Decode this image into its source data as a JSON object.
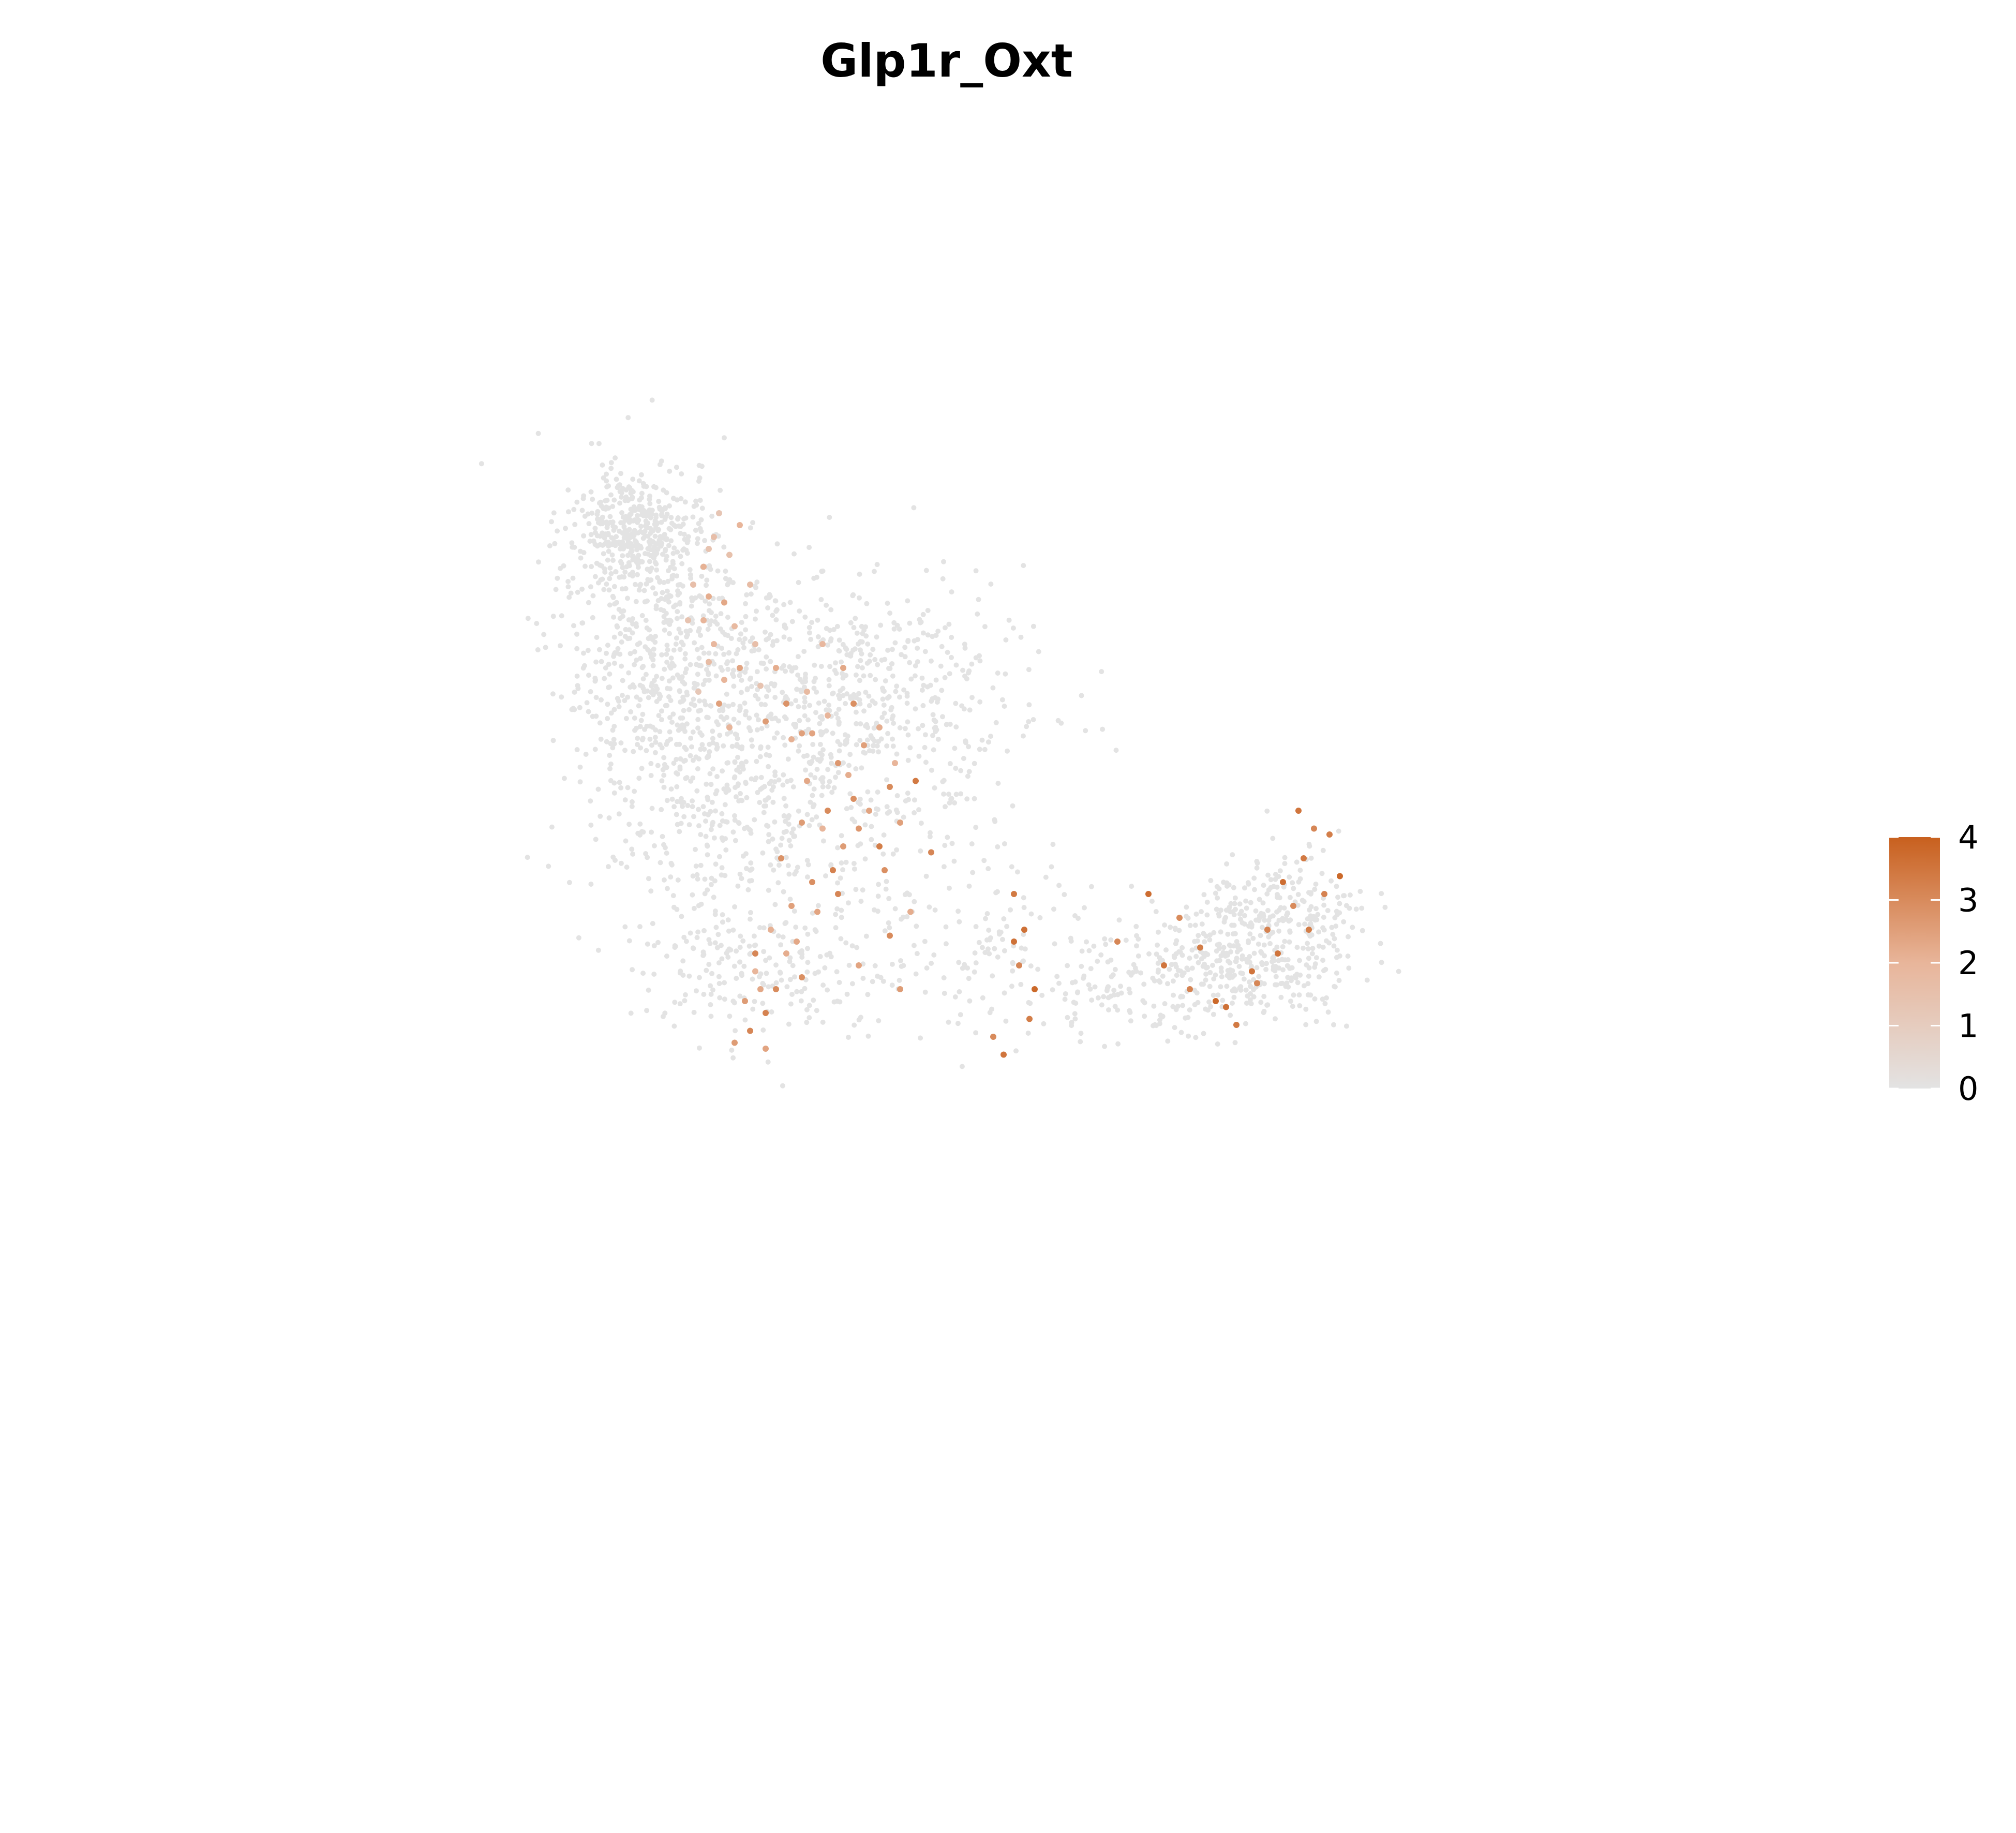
{
  "chart_data": {
    "type": "scatter",
    "title": "Glp1r_Oxt",
    "xlabel": "",
    "ylabel": "",
    "grid": false,
    "axes_visible": false,
    "legend": {
      "type": "colorbar",
      "placement": "right",
      "ticks": [
        "0",
        "1",
        "2",
        "3",
        "4"
      ],
      "min": 0,
      "max": 4
    },
    "colors": {
      "low": "#e3e3e3",
      "mid": "#e8b59a",
      "high": "#c8601e"
    },
    "expressed_points": [
      [
        0.24,
        0.8,
        1.6
      ],
      [
        0.26,
        0.83,
        2.1
      ],
      [
        0.27,
        0.86,
        1.4
      ],
      [
        0.26,
        0.74,
        2.0
      ],
      [
        0.25,
        0.62,
        1.2
      ],
      [
        0.28,
        0.7,
        1.9
      ],
      [
        0.3,
        0.77,
        2.3
      ],
      [
        0.31,
        0.85,
        1.5
      ],
      [
        0.33,
        0.9,
        2.0
      ],
      [
        0.29,
        0.92,
        1.3
      ],
      [
        0.27,
        0.78,
        2.2
      ],
      [
        0.32,
        0.73,
        1.8
      ],
      [
        0.33,
        0.66,
        2.4
      ],
      [
        0.35,
        0.8,
        1.7
      ],
      [
        0.36,
        0.7,
        1.6
      ],
      [
        0.29,
        0.6,
        2.5
      ],
      [
        0.31,
        0.56,
        2.0
      ],
      [
        0.37,
        0.63,
        1.4
      ],
      [
        0.38,
        0.57,
        2.6
      ],
      [
        0.4,
        0.66,
        2.2
      ],
      [
        0.42,
        0.6,
        2.8
      ],
      [
        0.43,
        0.54,
        2.1
      ],
      [
        0.46,
        0.62,
        1.8
      ],
      [
        0.47,
        0.55,
        2.4
      ],
      [
        0.5,
        0.58,
        2.0
      ],
      [
        0.52,
        0.5,
        2.7
      ],
      [
        0.49,
        0.7,
        1.9
      ],
      [
        0.53,
        0.66,
        2.3
      ],
      [
        0.55,
        0.6,
        2.9
      ],
      [
        0.57,
        0.53,
        2.5
      ],
      [
        0.6,
        0.56,
        2.2
      ],
      [
        0.62,
        0.46,
        3.0
      ],
      [
        0.58,
        0.42,
        2.4
      ],
      [
        0.55,
        0.44,
        2.9
      ],
      [
        0.45,
        0.4,
        2.6
      ],
      [
        0.41,
        0.34,
        2.8
      ],
      [
        0.43,
        0.26,
        2.5
      ],
      [
        0.39,
        0.22,
        2.1
      ],
      [
        0.36,
        0.18,
        3.1
      ],
      [
        0.37,
        0.12,
        2.3
      ],
      [
        0.34,
        0.1,
        2.6
      ],
      [
        0.35,
        0.05,
        3.1
      ],
      [
        0.36,
        0.15,
        2.0
      ],
      [
        0.4,
        0.12,
        3.0
      ],
      [
        0.42,
        0.18,
        2.2
      ],
      [
        0.48,
        0.25,
        2.4
      ],
      [
        0.51,
        0.32,
        3.2
      ],
      [
        0.53,
        0.36,
        2.6
      ],
      [
        0.49,
        0.39,
        2.0
      ],
      [
        0.47,
        0.3,
        2.9
      ],
      [
        0.5,
        0.42,
        3.0
      ],
      [
        0.54,
        0.48,
        2.2
      ],
      [
        0.56,
        0.39,
        2.7
      ],
      [
        0.6,
        0.36,
        3.3
      ],
      [
        0.63,
        0.5,
        2.0
      ],
      [
        0.64,
        0.4,
        2.5
      ],
      [
        0.61,
        0.32,
        2.9
      ],
      [
        0.67,
        0.47,
        3.4
      ],
      [
        0.7,
        0.35,
        3.1
      ],
      [
        0.66,
        0.25,
        2.2
      ],
      [
        0.62,
        0.21,
        3.0
      ],
      [
        0.64,
        0.12,
        2.6
      ],
      [
        0.56,
        0.16,
        2.4
      ],
      [
        0.52,
        0.28,
        3.1
      ],
      [
        0.46,
        0.47,
        2.3
      ],
      [
        0.45,
        0.55,
        2.5
      ],
      [
        0.3,
        0.64,
        2.0
      ],
      [
        0.27,
        0.67,
        1.7
      ],
      [
        0.28,
        0.88,
        1.6
      ],
      [
        0.23,
        0.74,
        1.4
      ],
      [
        0.86,
        0.28,
        3.4
      ],
      [
        0.88,
        0.22,
        3.6
      ],
      [
        0.87,
        0.16,
        3.1
      ],
      [
        0.9,
        0.12,
        3.8
      ],
      [
        0.89,
        0.07,
        3.3
      ],
      [
        0.84,
        0.01,
        3.5
      ],
      [
        0.86,
        0.2,
        3.6
      ],
      [
        0.82,
        0.04,
        3.0
      ],
      [
        1.06,
        0.2,
        3.1
      ],
      [
        1.12,
        0.28,
        3.7
      ],
      [
        1.15,
        0.16,
        3.5
      ],
      [
        1.18,
        0.24,
        3.0
      ],
      [
        1.22,
        0.19,
        3.3
      ],
      [
        1.25,
        0.1,
        3.8
      ],
      [
        1.29,
        0.06,
        3.4
      ],
      [
        1.32,
        0.15,
        3.5
      ],
      [
        1.35,
        0.22,
        3.2
      ],
      [
        1.38,
        0.3,
        3.7
      ],
      [
        1.4,
        0.26,
        3.0
      ],
      [
        1.42,
        0.34,
        3.4
      ],
      [
        1.44,
        0.39,
        3.1
      ],
      [
        1.41,
        0.42,
        3.5
      ],
      [
        1.47,
        0.38,
        3.3
      ],
      [
        1.49,
        0.31,
        3.8
      ],
      [
        1.46,
        0.28,
        3.2
      ],
      [
        1.43,
        0.22,
        3.3
      ],
      [
        1.37,
        0.18,
        3.5
      ],
      [
        1.33,
        0.13,
        3.1
      ],
      [
        1.27,
        0.09,
        3.6
      ],
      [
        1.2,
        0.12,
        3.2
      ],
      [
        0.44,
        0.2,
        2.3
      ],
      [
        0.45,
        0.14,
        2.9
      ],
      [
        0.38,
        0.08,
        3.2
      ],
      [
        0.32,
        0.03,
        2.6
      ],
      [
        0.38,
        0.02,
        2.4
      ]
    ]
  }
}
